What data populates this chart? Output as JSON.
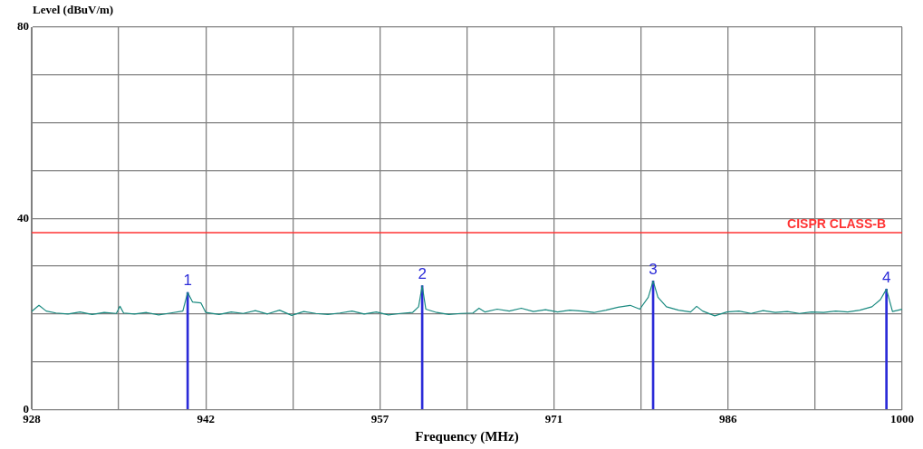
{
  "chart_data": {
    "type": "line",
    "xlabel": "Frequency (MHz)",
    "ylabel": "Level (dBuV/m)",
    "xlim": [
      928,
      1000
    ],
    "ylim": [
      0,
      80
    ],
    "xticks": [
      928,
      {
        "value": 935.2,
        "label": null
      },
      {
        "value": 942.4,
        "label": "942"
      },
      {
        "value": 949.6,
        "label": null
      },
      {
        "value": 956.8,
        "label": "957"
      },
      {
        "value": 964,
        "label": null
      },
      {
        "value": 971.2,
        "label": "971"
      },
      {
        "value": 978.4,
        "label": null
      },
      {
        "value": 985.6,
        "label": "986"
      },
      {
        "value": 992.8,
        "label": null
      },
      1000
    ],
    "yticks": [
      0,
      {
        "value": 10,
        "label": null
      },
      {
        "value": 20,
        "label": null
      },
      {
        "value": 30,
        "label": null
      },
      40,
      {
        "value": 50,
        "label": null
      },
      {
        "value": 60,
        "label": null
      },
      {
        "value": 70,
        "label": null
      },
      80
    ],
    "grid": true,
    "legend": false,
    "marker": "none",
    "line_style": "solid",
    "ref_lines": [
      {
        "axis": "y",
        "value": 37,
        "label": "CISPR CLASS-B",
        "color": "#ff3333"
      }
    ],
    "series": [
      {
        "color": "#1a8a80",
        "x": [
          928,
          928.6,
          929.2,
          930,
          931,
          932,
          933,
          934,
          935,
          935.3,
          935.6,
          936.5,
          937.5,
          938.5,
          939.5,
          940.5,
          940.9,
          941.3,
          942,
          942.4,
          943.5,
          944.5,
          945.5,
          946.5,
          947.5,
          948.5,
          949.5,
          950.5,
          951.5,
          952.5,
          953.5,
          954.5,
          955.5,
          956.5,
          957.5,
          958.5,
          959.5,
          960,
          960.3,
          960.6,
          961.5,
          962.5,
          963.5,
          964.5,
          965,
          965.5,
          966.5,
          967.5,
          968.5,
          969.5,
          970.5,
          971.5,
          972.5,
          973.5,
          974.5,
          975.5,
          976.5,
          977.5,
          978.3,
          979,
          979.4,
          979.8,
          980.5,
          981.5,
          982.5,
          983,
          983.5,
          984.5,
          985.5,
          986.5,
          987.5,
          988.5,
          989.5,
          990.5,
          991.5,
          992.5,
          993.5,
          994.5,
          995.5,
          996.5,
          997.5,
          998.2,
          998.7,
          999.2,
          1000
        ],
        "values": [
          20.5,
          21.8,
          20.6,
          20.2,
          20.0,
          20.4,
          19.9,
          20.3,
          20.1,
          21.6,
          20.2,
          20.0,
          20.3,
          19.8,
          20.2,
          20.6,
          24.5,
          22.5,
          22.3,
          20.3,
          19.9,
          20.4,
          20.1,
          20.7,
          20.0,
          20.8,
          19.7,
          20.5,
          20.1,
          19.9,
          20.2,
          20.6,
          20.0,
          20.4,
          19.8,
          20.1,
          20.3,
          21.5,
          25.9,
          21.0,
          20.3,
          19.9,
          20.1,
          20.2,
          21.2,
          20.4,
          21.0,
          20.6,
          21.2,
          20.5,
          20.9,
          20.4,
          20.8,
          20.6,
          20.3,
          20.8,
          21.4,
          21.8,
          21.0,
          23.5,
          26.9,
          23.5,
          21.5,
          20.8,
          20.4,
          21.6,
          20.6,
          19.6,
          20.4,
          20.6,
          20.1,
          20.7,
          20.3,
          20.5,
          20.1,
          20.4,
          20.3,
          20.6,
          20.4,
          20.8,
          21.5,
          23.0,
          25.2,
          20.5,
          21.0
        ]
      },
      {
        "type": "bar",
        "color": "#2b2bd8",
        "x": [
          940.9,
          960.3,
          979.4,
          998.7
        ],
        "values": [
          24.5,
          25.9,
          26.9,
          25.2
        ]
      }
    ],
    "annotations": [
      {
        "text": "1",
        "x": 940.9,
        "y": 24.5
      },
      {
        "text": "2",
        "x": 960.3,
        "y": 25.9
      },
      {
        "text": "3",
        "x": 979.4,
        "y": 26.9
      },
      {
        "text": "4",
        "x": 998.7,
        "y": 25.2
      }
    ]
  }
}
